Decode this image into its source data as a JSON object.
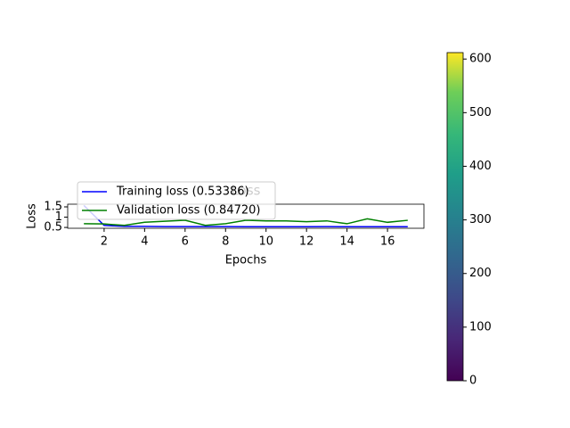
{
  "chart_data": {
    "type": "line",
    "title": "Loss",
    "x_label": "Epochs",
    "y_label": "Loss",
    "x": [
      1,
      2,
      3,
      4,
      5,
      6,
      7,
      8,
      9,
      10,
      11,
      12,
      13,
      14,
      15,
      16,
      17
    ],
    "series": [
      {
        "name": "Training loss (0.53386)",
        "color": "#0000ff",
        "values": [
          1.57,
          0.6,
          0.55,
          0.55,
          0.54,
          0.54,
          0.54,
          0.54,
          0.535,
          0.535,
          0.535,
          0.535,
          0.54,
          0.535,
          0.535,
          0.534,
          0.53386
        ]
      },
      {
        "name": "Validation loss (0.84720)",
        "color": "#008000",
        "values": [
          0.68,
          0.67,
          0.6,
          0.75,
          0.8,
          0.85,
          0.6,
          0.68,
          0.85,
          0.82,
          0.82,
          0.78,
          0.82,
          0.68,
          0.92,
          0.75,
          0.8472
        ]
      }
    ],
    "xlim": [
      0.2,
      17.8
    ],
    "xticks": [
      2,
      4,
      6,
      8,
      10,
      12,
      14,
      16
    ],
    "ylim": [
      0.46,
      1.63
    ],
    "yticks": [
      0.5,
      1.0,
      1.5
    ],
    "legend": "upper left",
    "colorbar": {
      "ylim": [
        0,
        612
      ],
      "yticks": [
        0,
        100,
        200,
        300,
        400,
        500,
        600
      ],
      "colormap": "viridis"
    }
  }
}
